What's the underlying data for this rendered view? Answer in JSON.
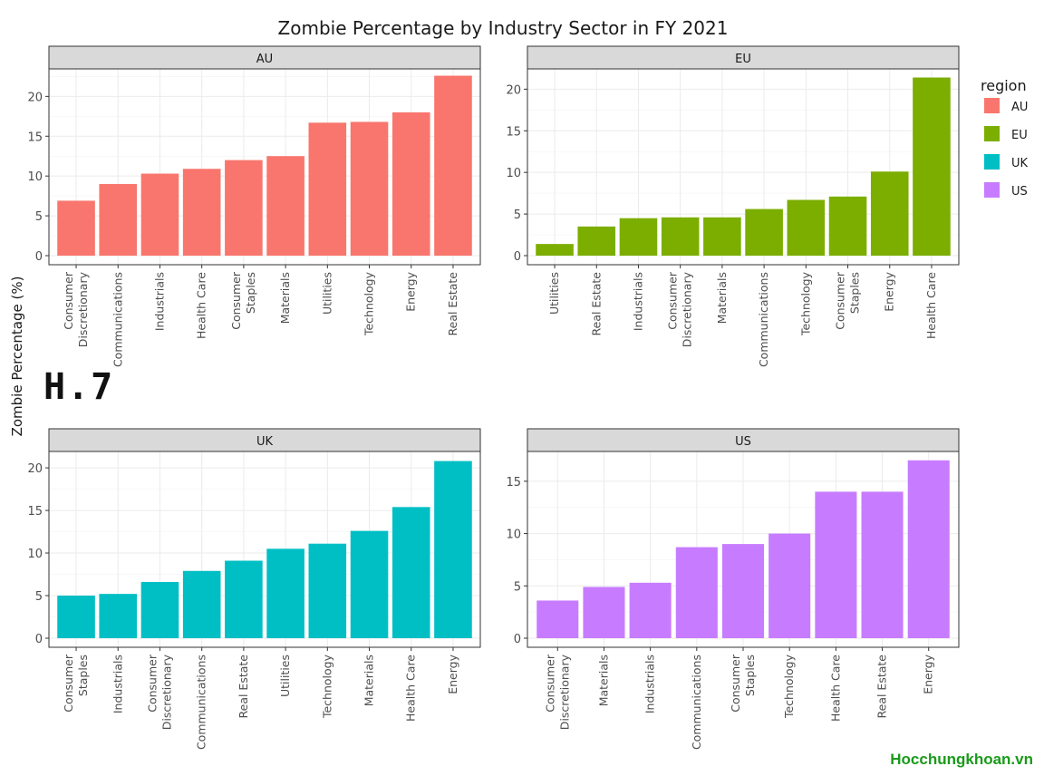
{
  "chart_data": {
    "type": "bar",
    "title": "Zombie Percentage by Industry Sector in FY 2021",
    "ylabel": "Zombie Percentage (%)",
    "legend": {
      "title": "region",
      "placement": "right",
      "entries": [
        {
          "name": "AU",
          "color": "#F8766D"
        },
        {
          "name": "EU",
          "color": "#7CAE00"
        },
        {
          "name": "UK",
          "color": "#00BFC4"
        },
        {
          "name": "US",
          "color": "#C77CFF"
        }
      ]
    },
    "grid": true,
    "panels": [
      {
        "name": "AU",
        "color": "#F8766D",
        "ylim": [
          0,
          23
        ],
        "yticks": [
          0,
          5,
          10,
          15,
          20
        ],
        "categories": [
          "Consumer\nDiscretionary",
          "Communications",
          "Industrials",
          "Health Care",
          "Consumer\nStaples",
          "Materials",
          "Utilities",
          "Technology",
          "Energy",
          "Real Estate"
        ],
        "values": [
          6.9,
          9.0,
          10.3,
          10.9,
          12.0,
          12.5,
          16.7,
          16.8,
          18.0,
          22.6
        ]
      },
      {
        "name": "EU",
        "color": "#7CAE00",
        "ylim": [
          0,
          22
        ],
        "yticks": [
          0,
          5,
          10,
          15,
          20
        ],
        "categories": [
          "Utilities",
          "Real Estate",
          "Industrials",
          "Consumer\nDiscretionary",
          "Materials",
          "Communications",
          "Technology",
          "Consumer\nStaples",
          "Energy",
          "Health Care"
        ],
        "values": [
          1.4,
          3.5,
          4.5,
          4.6,
          4.6,
          5.6,
          6.7,
          7.1,
          10.1,
          21.4
        ]
      },
      {
        "name": "UK",
        "color": "#00BFC4",
        "ylim": [
          0,
          21.5
        ],
        "yticks": [
          0,
          5,
          10,
          15,
          20
        ],
        "categories": [
          "Consumer\nStaples",
          "Industrials",
          "Consumer\nDiscretionary",
          "Communications",
          "Real Estate",
          "Utilities",
          "Technology",
          "Materials",
          "Health Care",
          "Energy"
        ],
        "values": [
          5.0,
          5.2,
          6.6,
          7.9,
          9.1,
          10.5,
          11.1,
          12.6,
          15.4,
          20.8
        ]
      },
      {
        "name": "US",
        "color": "#C77CFF",
        "ylim": [
          0,
          17.5
        ],
        "yticks": [
          0,
          5,
          10,
          15
        ],
        "categories": [
          "Consumer\nDiscretionary",
          "Materials",
          "Industrials",
          "Communications",
          "Consumer\nStaples",
          "Technology",
          "Health Care",
          "Real Estate",
          "Energy"
        ],
        "values": [
          3.6,
          4.9,
          5.3,
          8.7,
          9.0,
          10.0,
          14.0,
          14.0,
          17.0
        ]
      }
    ]
  },
  "overlay_text": "H.7",
  "watermark": "Hocchungkhoan.vn"
}
